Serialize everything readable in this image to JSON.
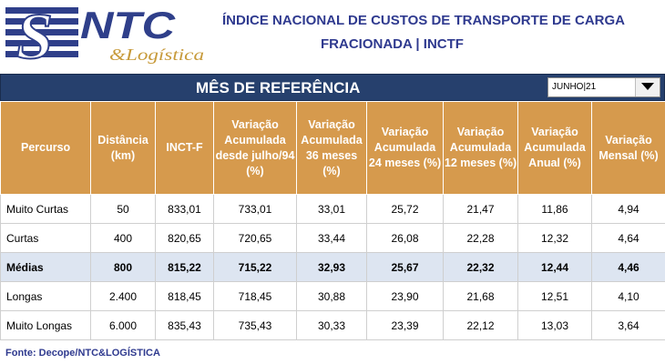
{
  "header": {
    "logo_main": "NTC",
    "logo_sub": "&Logística",
    "title_line1": "ÍNDICE NACIONAL DE CUSTOS DE TRANSPORTE DE CARGA",
    "title_line2": "FRACIONADA   |   INCTF"
  },
  "selector": {
    "label": "MÊS DE REFERÊNCIA",
    "selected": "JUNHO|21"
  },
  "colors": {
    "title": "#2f3a8f",
    "banner": "#26406d",
    "header_bg": "#d69a4d",
    "highlight_row": "#dde5f1"
  },
  "table": {
    "headers": [
      "Percurso",
      "Distância (km)",
      "INCT-F",
      "Variação Acumulada desde julho/94 (%)",
      "Variação Acumulada 36 meses (%)",
      "Variação Acumulada 24 meses (%)",
      "Variação Acumulada 12 meses (%)",
      "Variação Acumulada Anual (%)",
      "Variação Mensal (%)"
    ],
    "rows": [
      [
        "Muito Curtas",
        "50",
        "833,01",
        "733,01",
        "33,01",
        "25,72",
        "21,47",
        "11,86",
        "4,94"
      ],
      [
        "Curtas",
        "400",
        "820,65",
        "720,65",
        "33,44",
        "26,08",
        "22,28",
        "12,32",
        "4,64"
      ],
      [
        "Médias",
        "800",
        "815,22",
        "715,22",
        "32,93",
        "25,67",
        "22,32",
        "12,44",
        "4,46"
      ],
      [
        "Longas",
        "2.400",
        "818,45",
        "718,45",
        "30,88",
        "23,90",
        "21,68",
        "12,51",
        "4,10"
      ],
      [
        "Muito Longas",
        "6.000",
        "835,43",
        "735,43",
        "30,33",
        "23,39",
        "22,12",
        "13,03",
        "3,64"
      ]
    ]
  },
  "footer": {
    "source": "Fonte: Decope/NTC&LOGÍSTICA"
  }
}
